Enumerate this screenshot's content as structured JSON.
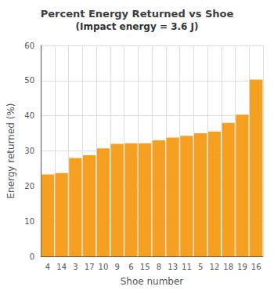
{
  "chart_data": {
    "type": "bar",
    "title": "Percent Energy Returned vs Shoe",
    "subtitle": "(Impact energy = 3.6 J)",
    "xlabel": "Shoe number",
    "ylabel": "Energy returned (%)",
    "categories": [
      "4",
      "14",
      "3",
      "17",
      "10",
      "9",
      "6",
      "15",
      "8",
      "13",
      "11",
      "5",
      "12",
      "18",
      "19",
      "16"
    ],
    "values": [
      23.3,
      23.7,
      28.0,
      28.8,
      30.7,
      32.0,
      32.2,
      32.2,
      33.0,
      33.8,
      34.3,
      35.0,
      35.5,
      38.0,
      40.3,
      50.3
    ],
    "color": "#F5A020",
    "ylim": [
      0,
      60
    ],
    "yticks": [
      0,
      10,
      20,
      30,
      40,
      50,
      60
    ],
    "grid": true
  }
}
